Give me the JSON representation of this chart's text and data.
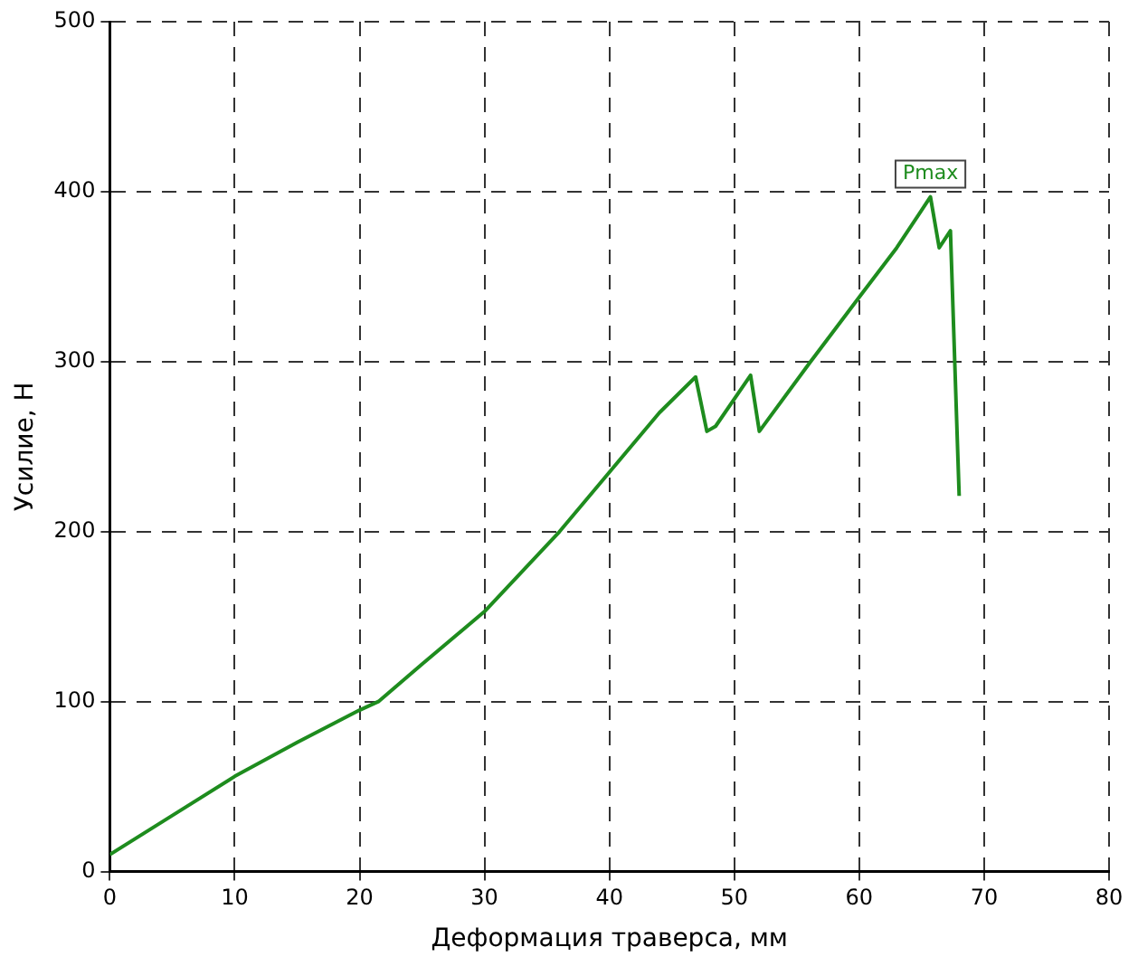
{
  "chart_data": {
    "type": "line",
    "xlabel": "Деформация траверса, мм",
    "ylabel": "Усилие, Н",
    "series": [
      {
        "color": "#1e8c1e",
        "x": [
          0,
          5,
          10,
          15,
          20,
          21.5,
          25,
          30,
          36,
          40,
          44,
          46.9,
          47.8,
          48.5,
          51.3,
          52,
          56,
          60,
          63,
          65.7,
          66.4,
          67.3,
          68
        ],
        "values": [
          10,
          33,
          56,
          76,
          95,
          100,
          122,
          153,
          200,
          235,
          270,
          291,
          259,
          262,
          292,
          259,
          299,
          338,
          367,
          397,
          367,
          377,
          221
        ]
      }
    ],
    "xlim": [
      0,
      80
    ],
    "xticks": [
      0,
      10,
      20,
      30,
      40,
      50,
      60,
      70,
      80
    ],
    "ylim": [
      0,
      500
    ],
    "yticks": [
      0,
      100,
      200,
      300,
      400,
      500
    ],
    "grid": true,
    "line_style": "solid",
    "marker": "none",
    "annotations": [
      {
        "text": "Pmax",
        "x": 65.7,
        "y": 397
      }
    ]
  }
}
